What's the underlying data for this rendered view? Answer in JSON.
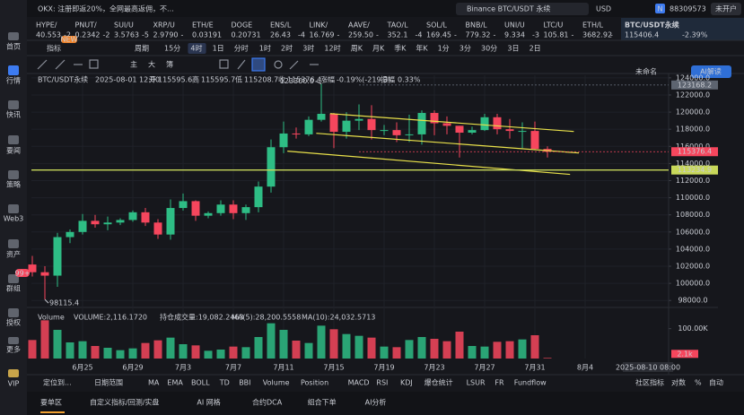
{
  "header": {
    "notice": "OKX: 注册即返20%，全网最高返佣，不...",
    "search": "Binance BTC/USDT 永续",
    "currency": "USD",
    "user_badge": "N",
    "user": "88309573",
    "account": "未开户"
  },
  "tickers": [
    {
      "name": "HYPE/",
      "price": "40.553",
      "change": "-2"
    },
    {
      "name": "PNUT/",
      "price": "0.2342",
      "change": "-2"
    },
    {
      "name": "SUI/U",
      "price": "3.5763",
      "change": "-5"
    },
    {
      "name": "XRP/U",
      "price": "2.9790",
      "change": "-"
    },
    {
      "name": "ETH/E",
      "price": "0.03191",
      "change": ""
    },
    {
      "name": "DOGE",
      "price": "0.20731",
      "change": ""
    },
    {
      "name": "ENS/L",
      "price": "26.43",
      "change": "-4"
    },
    {
      "name": "LINK/",
      "price": "16.769",
      "change": "-"
    },
    {
      "name": "AAVE/",
      "price": "259.50",
      "change": "-"
    },
    {
      "name": "TAO/L",
      "price": "352.1",
      "change": "-4"
    },
    {
      "name": "SOL/L",
      "price": "169.45",
      "change": "-"
    },
    {
      "name": "BNB/L",
      "price": "779.32",
      "change": "-"
    },
    {
      "name": "UNI/U",
      "price": "9.334",
      "change": "-3"
    },
    {
      "name": "LTC/U",
      "price": "105.81",
      "change": "-"
    },
    {
      "name": "ETH/L",
      "price": "3682.92",
      "change": "-"
    }
  ],
  "sidebar": {
    "items": [
      "首页",
      "行情",
      "快讯",
      "要闻",
      "策略",
      "Web3",
      "资产",
      "群组",
      "授权",
      "更多",
      "VIP"
    ],
    "badge": "99+"
  },
  "toolbar": {
    "indicator": "指标",
    "period": "周期",
    "new": "NEW",
    "intervals": [
      "15分",
      "4时",
      "1日",
      "分时",
      "1时",
      "2时",
      "3时",
      "12时",
      "周K",
      "月K",
      "季K",
      "年K",
      "1分",
      "3分",
      "30分",
      "3日",
      "2日"
    ],
    "active": "4时",
    "tools": [
      "主",
      "大",
      "簿"
    ]
  },
  "panel": {
    "symbol": "BTC/USDT永续",
    "price": "115406.4",
    "change": "-2.39%",
    "layout": "未命名",
    "ai": "AI解读"
  },
  "chart_data": {
    "type": "candlestick",
    "title": "BTC/USDT永续",
    "info": {
      "time": "2025-08-01 12:00",
      "open_label": "开",
      "open": 115595.6,
      "high_label": "高",
      "high": 115595.7,
      "low_label": "低",
      "low": 115208.7,
      "close_label": "收",
      "close": 115376.4,
      "change_label": "涨幅",
      "change": "-0.19%(-219.3)",
      "amp_label": "振幅",
      "amplitude": "0.33%"
    },
    "categories": [
      null,
      null,
      null,
      null,
      "6月25",
      null,
      null,
      null,
      "6月29",
      null,
      null,
      null,
      "7月3",
      null,
      null,
      null,
      "7月7",
      null,
      null,
      null,
      "7月11",
      null,
      null,
      null,
      "7月15",
      null,
      null,
      null,
      "7月19",
      null,
      null,
      null,
      "7月23",
      null,
      null,
      null,
      "7月27",
      null,
      null,
      null,
      "7月31",
      null,
      null,
      null,
      "8月4"
    ],
    "open": [
      102200,
      101300,
      100900,
      105400,
      106000,
      107300,
      106900,
      107100,
      107400,
      108300,
      107100,
      105700,
      108800,
      109600,
      107900,
      108200,
      109200,
      108200,
      108900,
      111300,
      115900,
      117500,
      117400,
      119100,
      119800,
      117700,
      119000,
      119200,
      117900,
      117900,
      117300,
      117400,
      119900,
      118700,
      118400,
      117600,
      117900,
      119400,
      118000,
      117800,
      117800,
      115700,
      null,
      null,
      null
    ],
    "high": [
      103200,
      102000,
      105900,
      106300,
      108100,
      108000,
      107800,
      107600,
      108500,
      108800,
      107500,
      109800,
      110500,
      109700,
      108400,
      109700,
      109700,
      109200,
      111900,
      116800,
      118900,
      118200,
      119500,
      123300,
      119900,
      120000,
      120900,
      120800,
      118500,
      118800,
      119700,
      120200,
      120200,
      119500,
      118400,
      118300,
      119800,
      119800,
      119200,
      118800,
      118900,
      116000,
      null,
      null,
      null
    ],
    "low": [
      100800,
      98115.4,
      99600,
      104700,
      105700,
      106500,
      106200,
      106800,
      107200,
      106700,
      105200,
      105100,
      108500,
      107300,
      107600,
      107900,
      107500,
      107400,
      108300,
      110600,
      115200,
      116900,
      117200,
      118900,
      115800,
      116900,
      117900,
      116800,
      117300,
      116500,
      116500,
      116200,
      117300,
      117400,
      114700,
      117400,
      117800,
      117400,
      116900,
      115800,
      115600,
      114700,
      null,
      null,
      null
    ],
    "close": [
      101300,
      100900,
      105400,
      106000,
      107300,
      106900,
      107100,
      107400,
      108300,
      107100,
      105700,
      108800,
      109600,
      107900,
      108200,
      109200,
      108200,
      108900,
      111300,
      115900,
      117500,
      117400,
      119100,
      119800,
      117700,
      119000,
      119200,
      117900,
      117900,
      117300,
      117400,
      119900,
      118700,
      118400,
      117600,
      117900,
      119400,
      118000,
      117800,
      117800,
      115700,
      115376.4,
      null,
      null,
      null
    ],
    "up_color": "#2ebd85",
    "down_color": "#f6465d",
    "ylim": [
      97500,
      124300
    ],
    "yticks": [
      {
        "value": 98000,
        "label": "98000.0"
      },
      {
        "value": 100000,
        "label": "100000.0"
      },
      {
        "value": 102000,
        "label": "102000.0"
      },
      {
        "value": 104000,
        "label": "104000.0"
      },
      {
        "value": 106000,
        "label": "106000.0"
      },
      {
        "value": 108000,
        "label": "108000.0"
      },
      {
        "value": 110000,
        "label": "110000.0"
      },
      {
        "value": 112000,
        "label": "112000.0"
      },
      {
        "value": 114000,
        "label": "114000.0"
      },
      {
        "value": 116000,
        "label": "116000.0"
      },
      {
        "value": 118000,
        "label": "118000.0"
      },
      {
        "value": 120000,
        "label": "120000.0"
      },
      {
        "value": 122000,
        "label": "122000.0"
      },
      {
        "value": 124000,
        "label": "124000.0"
      }
    ],
    "grid": true,
    "price_lines": [
      {
        "value": 123168.2,
        "label": "123168.2",
        "color": "#5d6470"
      },
      {
        "value": 115376.4,
        "label": "115376.4",
        "color": "#f6465d"
      },
      {
        "value": 113234.9,
        "label": "113234.9",
        "color": "#c8d85a"
      }
    ],
    "annotations": [
      {
        "index": 23,
        "value": 123300,
        "label": "123300.0"
      },
      {
        "index": 1,
        "value": 98115.4,
        "label": "98115.4"
      }
    ],
    "trendlines": [
      {
        "from": [
          23.7,
          119823
        ],
        "to": [
          43.1,
          117735
        ]
      },
      {
        "from": [
          22.6,
          117526
        ],
        "to": [
          43.5,
          115229
        ]
      },
      {
        "from": [
          20.3,
          115438
        ],
        "to": [
          42.8,
          112723
        ]
      }
    ],
    "trend_color": "#e8e04a",
    "cursor_time": "2025-08-10 08:00",
    "volume": {
      "title": "Volume",
      "info": [
        "VOLUME:2,116.1720",
        "持仓成交量:19,082.2463",
        "MA(5):28,200.5558",
        "MA(10):24,032.5713"
      ],
      "values": [
        62000,
        128000,
        96000,
        54000,
        58000,
        42000,
        36000,
        28000,
        34000,
        52000,
        61000,
        70000,
        48000,
        44000,
        26000,
        30000,
        40000,
        38000,
        72000,
        118000,
        96000,
        60000,
        52000,
        110000,
        98000,
        82000,
        76000,
        70000,
        40000,
        38000,
        62000,
        72000,
        66000,
        58000,
        90000,
        42000,
        40000,
        56000,
        58000,
        64000,
        78000,
        2116.172,
        null,
        null,
        null
      ],
      "ylim": [
        0,
        150000
      ],
      "yticks": [
        {
          "value": 100000,
          "label": "100.00K"
        }
      ],
      "last": {
        "value": 2116.172,
        "label": "2.1k"
      }
    }
  },
  "indicator_tabs": {
    "locate": "定位到...",
    "range": "日期范围",
    "items": [
      "MA",
      "EMA",
      "BOLL",
      "TD",
      "BBI",
      "Volume",
      "Position",
      "MACD",
      "RSI",
      "KDJ",
      "爆仓统计",
      "LSUR",
      "FR",
      "Fundflow"
    ],
    "active": "Volume",
    "right": [
      "社区指标",
      "对数",
      "%",
      "自动"
    ]
  },
  "bottom_tabs": [
    "要单区",
    "自定义指标/回测/实盘",
    "AI 网格",
    "合约DCA",
    "组合下单",
    "AI分析"
  ]
}
